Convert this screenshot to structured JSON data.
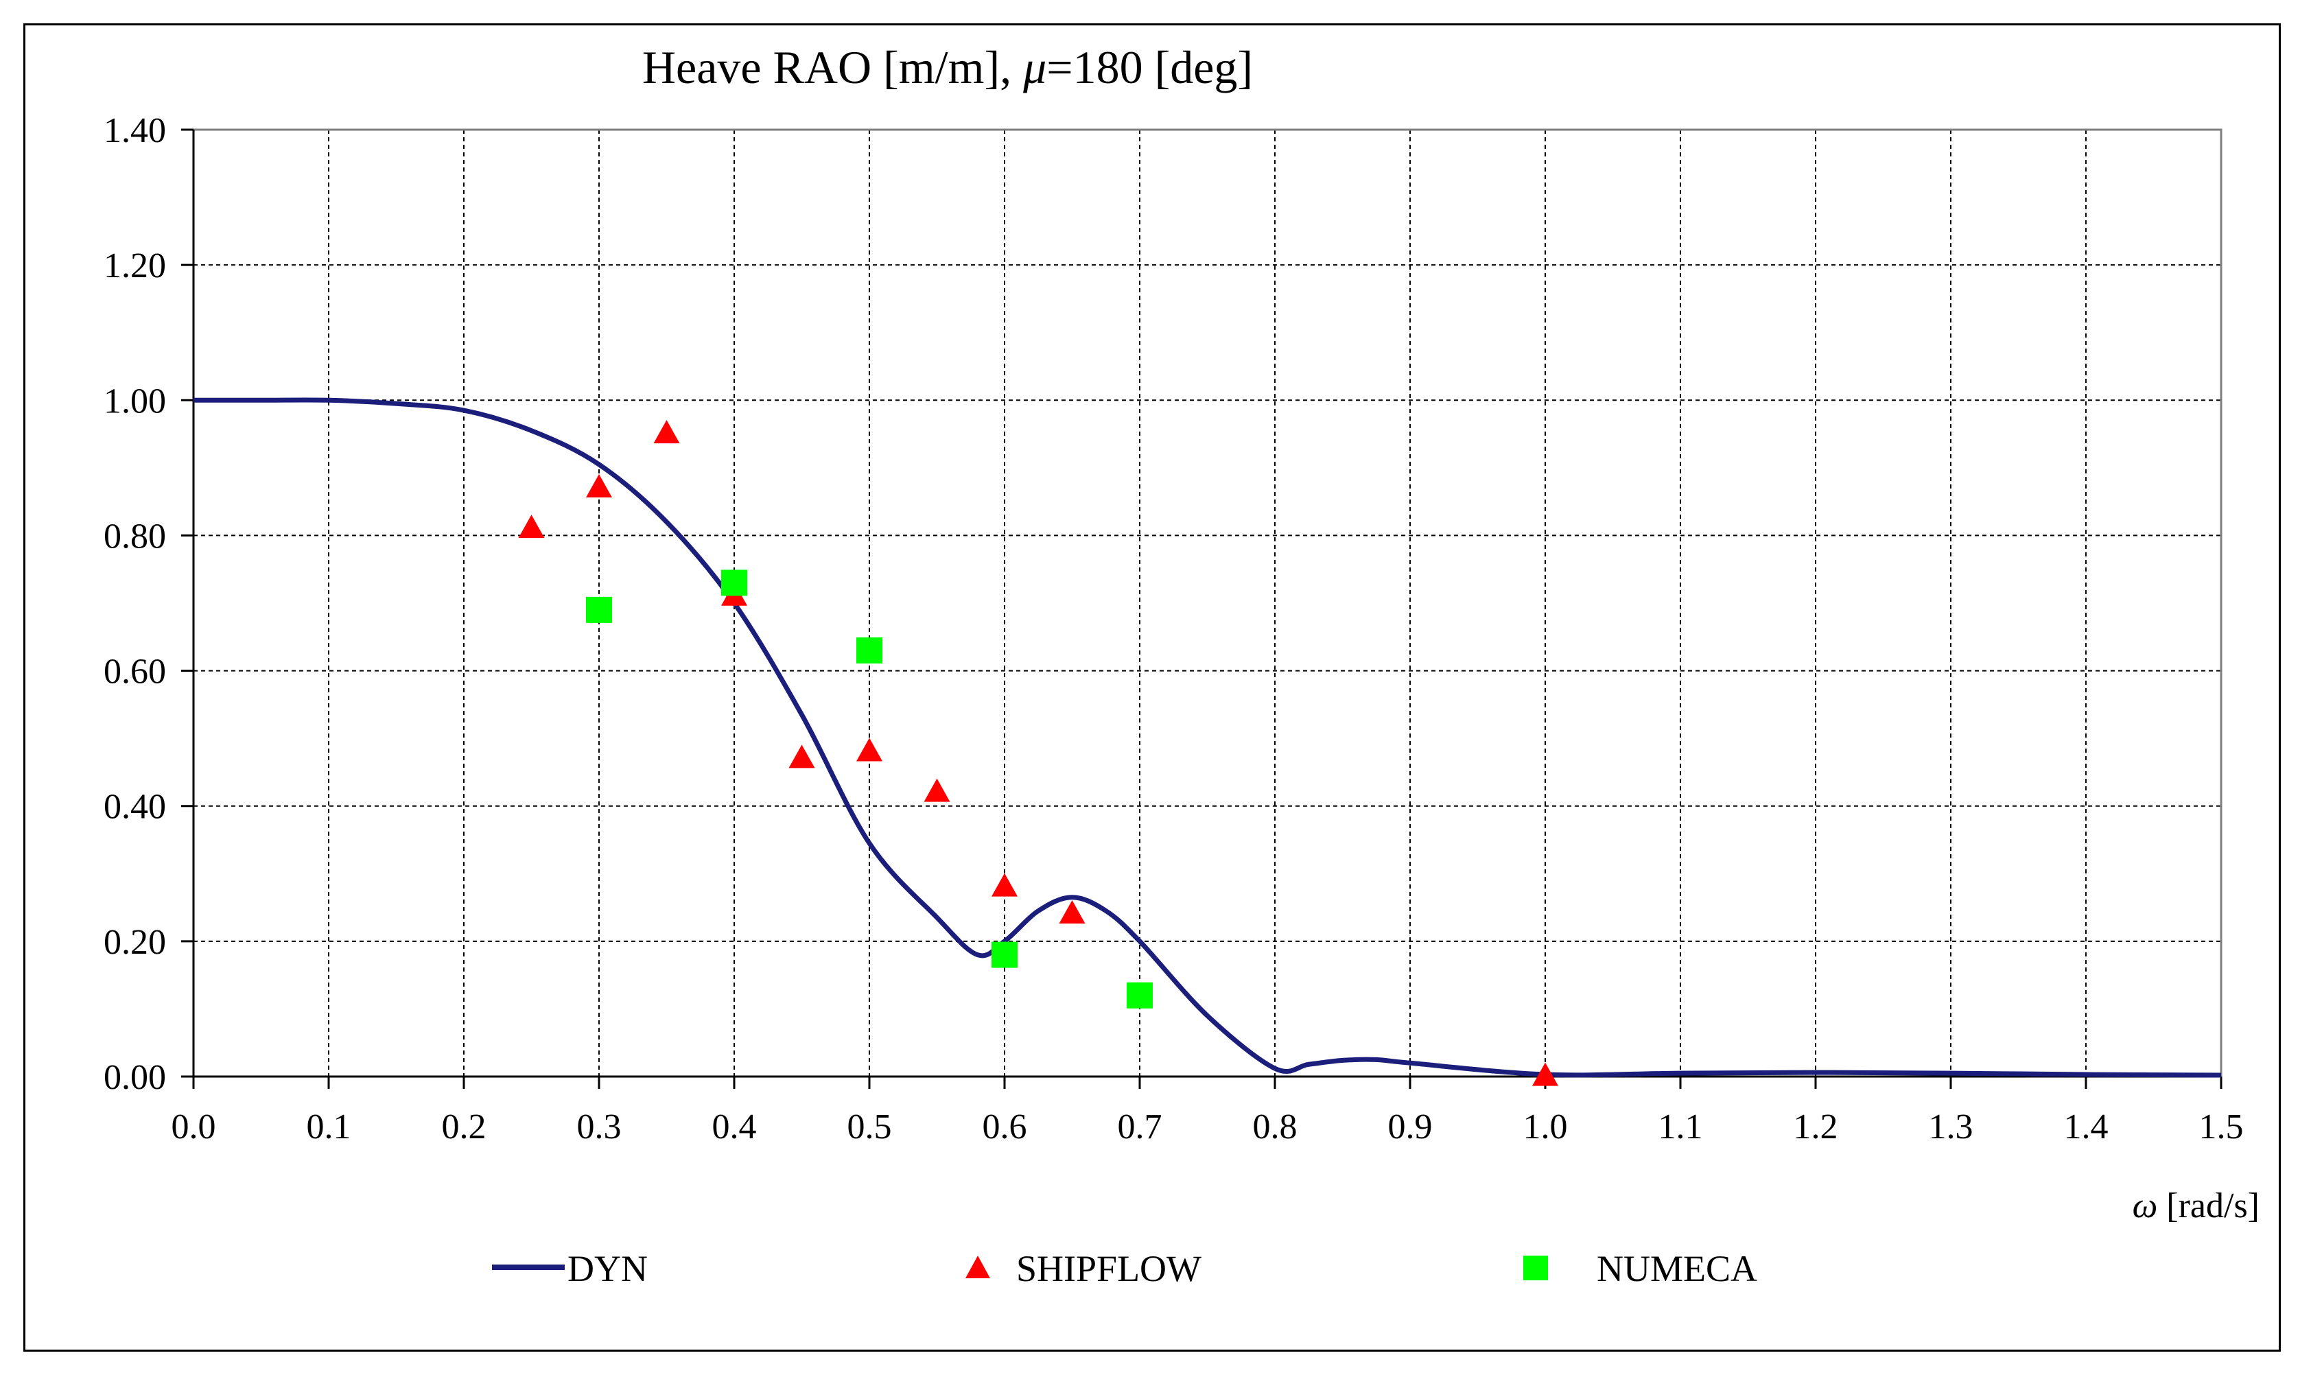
{
  "chart_data": {
    "type": "line",
    "title": "Heave RAO [m/m], μ=180 [deg]",
    "title_parts": {
      "prefix": "Heave RAO [m/m], ",
      "symbol": "μ",
      "suffix": "=180 [deg]"
    },
    "xlabel": "ω [rad/s]",
    "xlabel_parts": {
      "symbol": "ω",
      "unit": " [rad/s]"
    },
    "ylabel": "",
    "xlim": [
      0,
      1.5
    ],
    "ylim": [
      0,
      1.4
    ],
    "x_ticks": [
      "0.0",
      "0.1",
      "0.2",
      "0.3",
      "0.4",
      "0.5",
      "0.6",
      "0.7",
      "0.8",
      "0.9",
      "1.0",
      "1.1",
      "1.2",
      "1.3",
      "1.4",
      "1.5"
    ],
    "y_ticks": [
      "0.00",
      "0.20",
      "0.40",
      "0.60",
      "0.80",
      "1.00",
      "1.20",
      "1.40"
    ],
    "grid": true,
    "legend_position": "bottom",
    "series": [
      {
        "name": "DYN",
        "style": "line",
        "color": "#1b1e7a",
        "x": [
          0.0,
          0.05,
          0.1,
          0.15,
          0.2,
          0.25,
          0.3,
          0.35,
          0.4,
          0.45,
          0.5,
          0.55,
          0.58,
          0.6,
          0.625,
          0.65,
          0.675,
          0.7,
          0.75,
          0.8,
          0.825,
          0.85,
          0.875,
          0.9,
          1.0,
          1.1,
          1.2,
          1.3,
          1.4,
          1.5
        ],
        "y": [
          1.0,
          1.0,
          1.0,
          0.995,
          0.985,
          0.955,
          0.905,
          0.82,
          0.7,
          0.535,
          0.345,
          0.235,
          0.18,
          0.2,
          0.245,
          0.265,
          0.245,
          0.2,
          0.09,
          0.012,
          0.018,
          0.024,
          0.025,
          0.02,
          0.003,
          0.005,
          0.006,
          0.005,
          0.003,
          0.002
        ]
      },
      {
        "name": "SHIPFLOW",
        "style": "triangle",
        "color": "#ff0000",
        "x": [
          0.25,
          0.3,
          0.35,
          0.4,
          0.45,
          0.5,
          0.55,
          0.6,
          0.65,
          1.0
        ],
        "y": [
          0.81,
          0.87,
          0.95,
          0.71,
          0.47,
          0.48,
          0.42,
          0.28,
          0.24,
          0.0
        ]
      },
      {
        "name": "NUMECA",
        "style": "square",
        "color": "#00ff00",
        "x": [
          0.3,
          0.4,
          0.5,
          0.6,
          0.7
        ],
        "y": [
          0.69,
          0.73,
          0.63,
          0.18,
          0.12
        ]
      }
    ]
  }
}
